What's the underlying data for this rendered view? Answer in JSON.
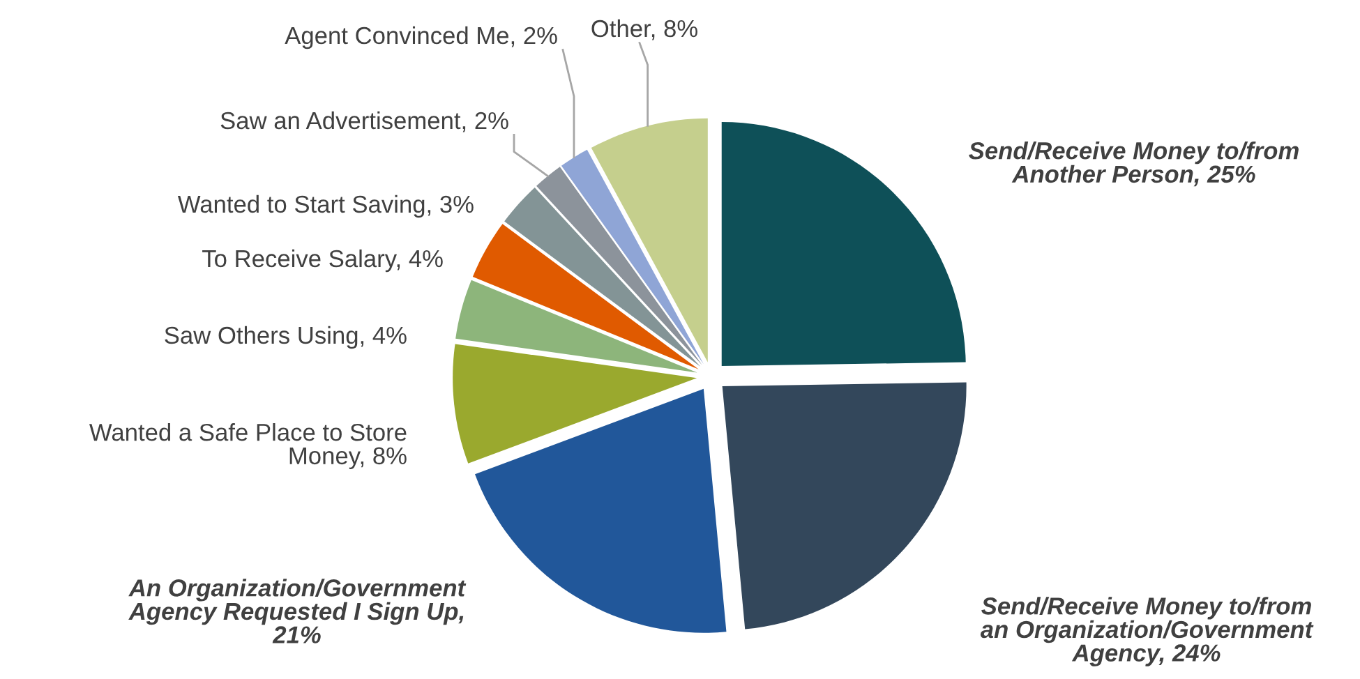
{
  "chart_data": {
    "type": "pie",
    "categories": [
      "Send/Receive Money to/from\nAnother Person, 25%",
      "Send/Receive Money to/from\nan Organization/Government\nAgency, 24%",
      "An Organization/Government\nAgency Requested I Sign Up,\n21%",
      "Wanted a Safe Place to Store\nMoney, 8%",
      "Saw Others Using, 4%",
      "To Receive Salary, 4%",
      "Wanted to Start Saving, 3%",
      "Saw an Advertisement, 2%",
      "Agent Convinced Me, 2%",
      "Other, 8%"
    ],
    "values": [
      25,
      24,
      21,
      8,
      4,
      4,
      3,
      2,
      2,
      8
    ],
    "colors": [
      "#0e5058",
      "#33475b",
      "#21579a",
      "#9aa92e",
      "#8db57b",
      "#e05a00",
      "#839496",
      "#8c939b",
      "#8fa5d6",
      "#c5cf8d"
    ],
    "legend": false
  }
}
